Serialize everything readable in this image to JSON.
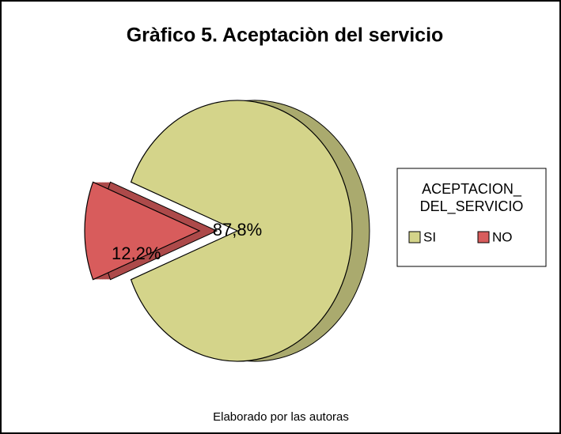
{
  "chart_data": {
    "type": "pie",
    "title": "Gràfico 5. Aceptaciòn del servicio",
    "categories": [
      "SI",
      "NO"
    ],
    "values": [
      87.8,
      12.2
    ],
    "value_labels": [
      "87,8%",
      "12,2%"
    ],
    "colors": [
      "#d4d48a",
      "#d85c5c"
    ],
    "legend_title": [
      "ACEPTACION_",
      "DEL_SERVICIO"
    ],
    "caption": "Elaborado por las autoras"
  }
}
